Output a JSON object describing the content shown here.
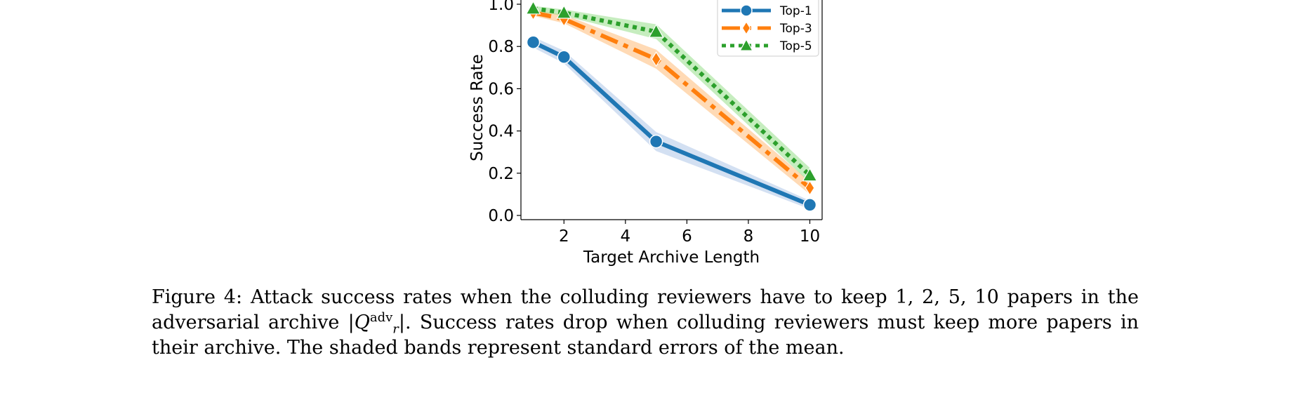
{
  "chart_data": {
    "type": "line",
    "title": "",
    "xlabel": "Target Archive Length",
    "ylabel": "Success Rate",
    "xlim": [
      0.6,
      10.4
    ],
    "ylim": [
      -0.02,
      1.02
    ],
    "xticks": [
      2,
      4,
      6,
      8,
      10
    ],
    "yticks": [
      0.0,
      0.2,
      0.4,
      0.6,
      0.8,
      1.0
    ],
    "xtick_labels": [
      "2",
      "4",
      "6",
      "8",
      "10"
    ],
    "ytick_labels": [
      "0.0",
      "0.2",
      "0.4",
      "0.6",
      "0.8",
      "1.0"
    ],
    "x": [
      1,
      2,
      5,
      10
    ],
    "legend_position": "top-right",
    "series": [
      {
        "name": "Top-1",
        "values": [
          0.82,
          0.75,
          0.35,
          0.05
        ],
        "stderr": [
          0.025,
          0.03,
          0.045,
          0.02
        ],
        "color": "#1f77b4",
        "band_color": "#aec7e8",
        "marker": "circle",
        "linestyle": "solid"
      },
      {
        "name": "Top-3",
        "values": [
          0.96,
          0.93,
          0.74,
          0.13
        ],
        "stderr": [
          0.015,
          0.02,
          0.045,
          0.03
        ],
        "color": "#ff7f0e",
        "band_color": "#ffbb78",
        "marker": "diamond",
        "linestyle": "dashdot"
      },
      {
        "name": "Top-5",
        "values": [
          0.98,
          0.96,
          0.87,
          0.19
        ],
        "stderr": [
          0.012,
          0.015,
          0.035,
          0.035
        ],
        "color": "#2ca02c",
        "band_color": "#98df8a",
        "marker": "triangle",
        "linestyle": "dotted"
      }
    ]
  },
  "caption": {
    "label": "Figure 4:",
    "text_before": "Attack success rates when the colluding reviewers have to keep 1, 2, 5, 10 papers in the adversarial archive",
    "math_symbol": "Q",
    "math_superscript": "adv",
    "math_subscript": "r",
    "text_after": ". Success rates drop when colluding reviewers must keep more papers in their archive. The shaded bands represent standard errors of the mean."
  }
}
